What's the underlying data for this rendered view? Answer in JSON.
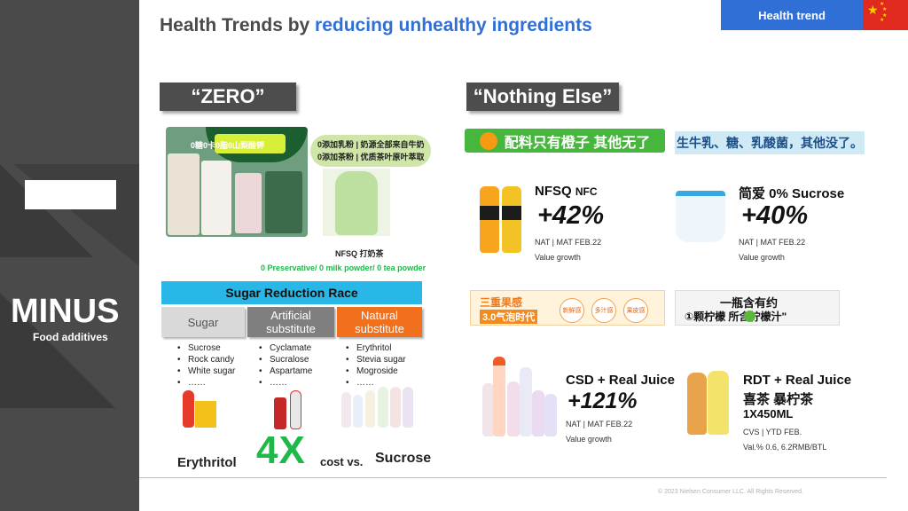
{
  "header": {
    "title_prefix": "Health Trends by ",
    "title_highlight": "reducing unhealthy ingredients",
    "tag": "Health trend"
  },
  "left": {
    "title": "MINUS",
    "subtitle": "Food additives"
  },
  "zero": {
    "heading": "“ZERO”",
    "caption_line1": "0添加乳粉 | 奶源全部来自牛奶",
    "caption_line2": "0添加茶粉 | 优质茶叶原叶萃取",
    "pack_text": "0糖0卡0脂0山梨酸钾",
    "product_name": "NFSQ  打奶茶",
    "tagline": "0 Preservative/ 0 milk powder/ 0 tea powder"
  },
  "sugar_race": {
    "title": "Sugar Reduction Race",
    "columns": [
      {
        "label": "Sugar",
        "items": [
          "Sucrose",
          "Rock candy",
          "White sugar",
          "……"
        ]
      },
      {
        "label": "Artificial substitute",
        "items": [
          "Cyclamate",
          "Sucralose",
          "Aspartame",
          "……"
        ]
      },
      {
        "label": "Natural substitute",
        "items": [
          "Erythritol",
          "Stevia sugar",
          "Mogroside",
          "……"
        ]
      }
    ],
    "bottom_left": "Erythritol",
    "bottom_mult": "4X",
    "bottom_mid": "cost vs.",
    "bottom_right": "Sucrose"
  },
  "nothing": {
    "heading": "“Nothing Else”",
    "banner_orange": "配料只有橙子 其他无了",
    "banner_blue": "生牛乳、糖、乳酸菌，其他没了。",
    "nfsq": {
      "name": "NFSQ",
      "name_suffix": "NFC",
      "growth": "+42%",
      "meta": "NAT | MAT FEB.22",
      "note": "Value growth"
    },
    "jianai": {
      "name": "简爱 0% Sucrose",
      "growth": "+40%",
      "meta": "NAT | MAT FEB.22",
      "note": "Value growth"
    },
    "banner_triple": "三重果感",
    "banner_triple_sub": "3.0气泡时代",
    "banner_triple_chips": [
      "新鲜感",
      "多汁感",
      "果皮感"
    ],
    "banner_lemon1": "一瓶含有约",
    "banner_lemon2": "①颗柠檬    所含柠檬汁\"",
    "csd": {
      "name": "CSD + Real Juice",
      "growth": "+121%",
      "meta": "NAT | MAT FEB.22",
      "note": "Value growth"
    },
    "rdt": {
      "name": "RDT + Real Juice",
      "brand": "喜茶 暴柠茶",
      "size": "1X450ML",
      "meta": "CVS | YTD FEB.",
      "note": "Val.% 0.6, 6.2RMB/BTL"
    }
  },
  "footer": {
    "copyright": "© 2023 Nielsen Consumer LLC. All Rights Reserved."
  },
  "colors": {
    "accent_blue": "#2f6fd6",
    "panel_gray": "#4a4a4a",
    "green": "#1fb84a",
    "sugar_gray": "#d9d9d9",
    "artificial_gray": "#7f7f7f",
    "natural_orange": "#f0701d",
    "race_blue": "#29b7e8"
  }
}
